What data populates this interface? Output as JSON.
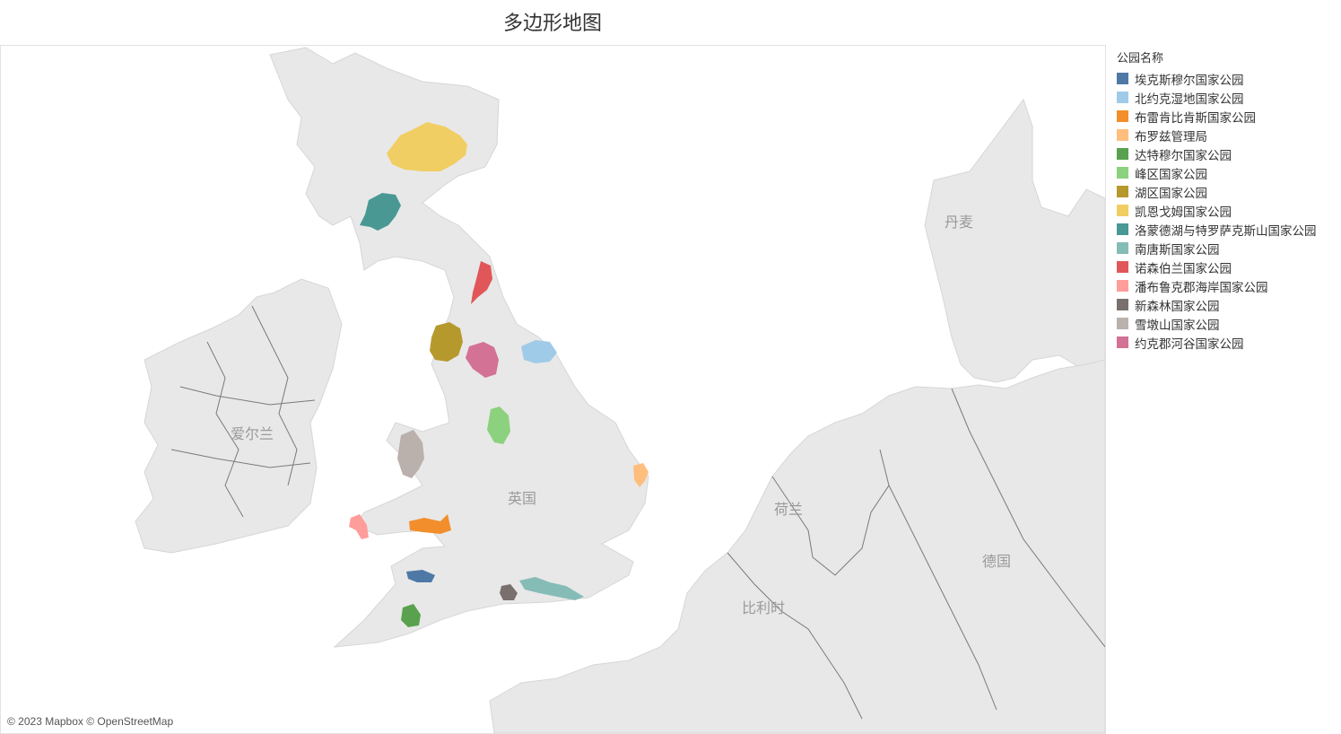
{
  "title": "多边形地图",
  "legend": {
    "title": "公园名称",
    "items": [
      {
        "label": "埃克斯穆尔国家公园",
        "color": "#4e79a7"
      },
      {
        "label": "北约克湿地国家公园",
        "color": "#a0cbe8"
      },
      {
        "label": "布雷肯比肯斯国家公园",
        "color": "#f28e2b"
      },
      {
        "label": "布罗兹管理局",
        "color": "#ffbe7d"
      },
      {
        "label": "达特穆尔国家公园",
        "color": "#59a14f"
      },
      {
        "label": "峰区国家公园",
        "color": "#8cd17d"
      },
      {
        "label": "湖区国家公园",
        "color": "#b6992d"
      },
      {
        "label": "凯恩戈姆国家公园",
        "color": "#f1ce63"
      },
      {
        "label": "洛蒙德湖与特罗萨克斯山国家公园",
        "color": "#499894"
      },
      {
        "label": "南唐斯国家公园",
        "color": "#86bcb6"
      },
      {
        "label": "诺森伯兰国家公园",
        "color": "#e15759"
      },
      {
        "label": "潘布鲁克郡海岸国家公园",
        "color": "#ff9d9a"
      },
      {
        "label": "新森林国家公园",
        "color": "#79706e"
      },
      {
        "label": "雪墩山国家公园",
        "color": "#bab0ac"
      },
      {
        "label": "约克郡河谷国家公园",
        "color": "#d37295"
      }
    ]
  },
  "map": {
    "labels": {
      "uk": "英国",
      "ireland": "爱尔兰",
      "denmark": "丹麦",
      "netherlands": "荷兰",
      "germany": "德国",
      "belgium": "比利时"
    },
    "attribution": "© 2023 Mapbox © OpenStreetMap"
  }
}
